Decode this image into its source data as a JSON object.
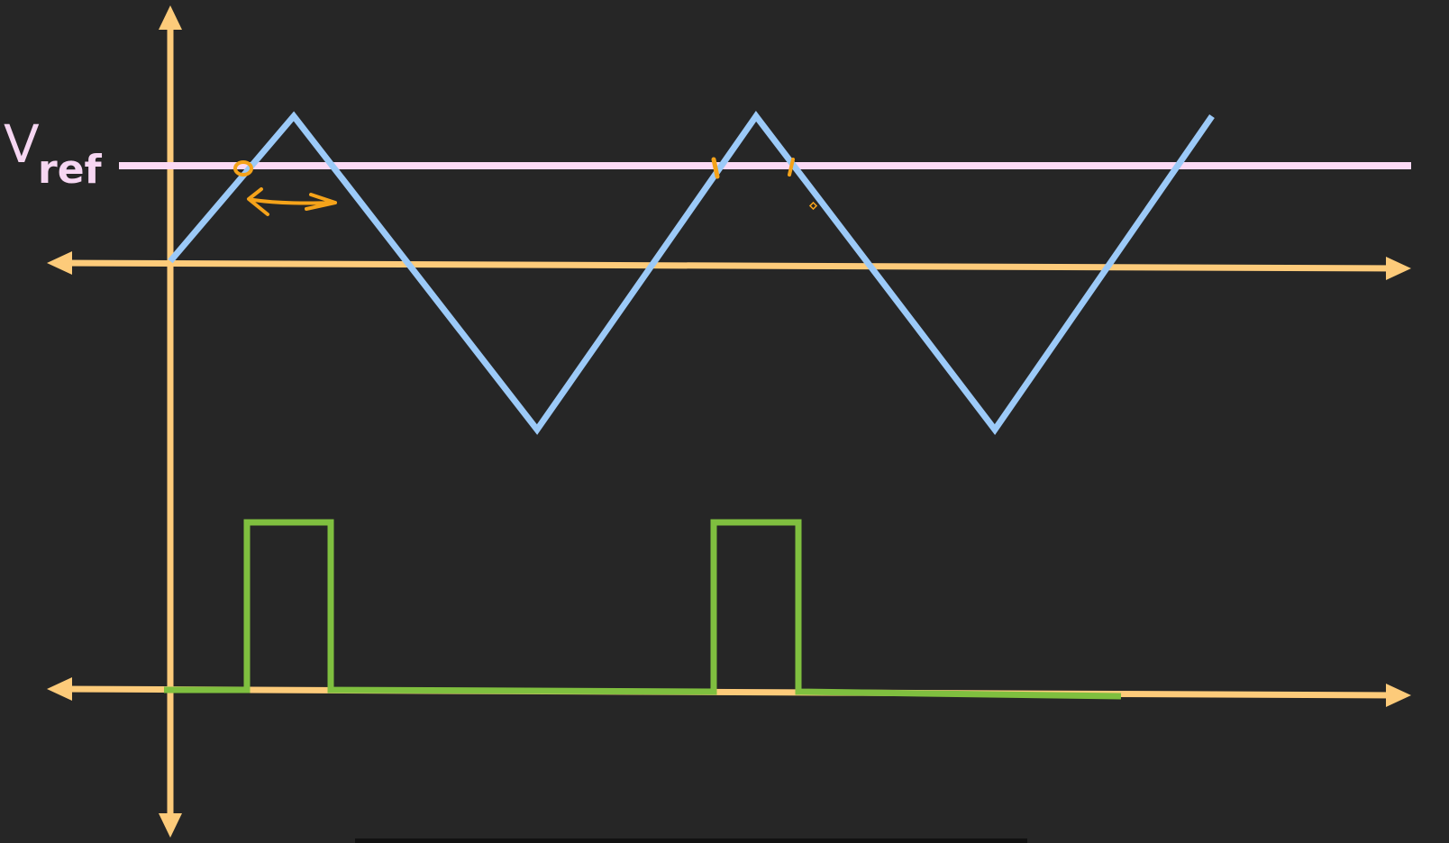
{
  "labels": {
    "v": "V",
    "ref": "ref"
  },
  "colors": {
    "background": "#262626",
    "axis": "#fdcb7a",
    "carrier": "#9ccaf8",
    "vref": "#fbd9f4",
    "pwm": "#7fbf3f",
    "annotation": "#f5a31a"
  }
}
